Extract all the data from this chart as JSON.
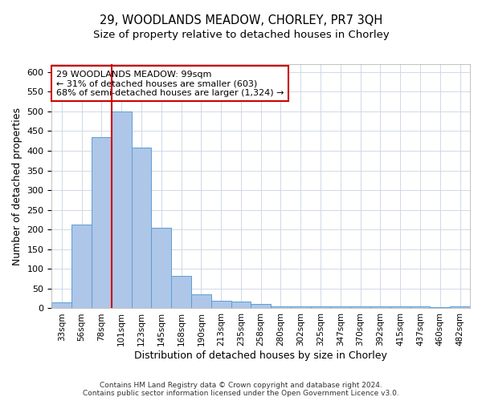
{
  "title_line1": "29, WOODLANDS MEADOW, CHORLEY, PR7 3QH",
  "title_line2": "Size of property relative to detached houses in Chorley",
  "xlabel": "Distribution of detached houses by size in Chorley",
  "ylabel": "Number of detached properties",
  "footer_line1": "Contains HM Land Registry data © Crown copyright and database right 2024.",
  "footer_line2": "Contains public sector information licensed under the Open Government Licence v3.0.",
  "bar_labels": [
    "33sqm",
    "56sqm",
    "78sqm",
    "101sqm",
    "123sqm",
    "145sqm",
    "168sqm",
    "190sqm",
    "213sqm",
    "235sqm",
    "258sqm",
    "280sqm",
    "302sqm",
    "325sqm",
    "347sqm",
    "370sqm",
    "392sqm",
    "415sqm",
    "437sqm",
    "460sqm",
    "482sqm"
  ],
  "bar_values": [
    15,
    212,
    435,
    500,
    408,
    205,
    83,
    36,
    19,
    17,
    11,
    5,
    4,
    4,
    4,
    4,
    4,
    4,
    4,
    2,
    4
  ],
  "bar_color": "#aec6e8",
  "bar_edge_color": "#5a9fd4",
  "vline_color": "#cc0000",
  "annotation_text": "29 WOODLANDS MEADOW: 99sqm\n← 31% of detached houses are smaller (603)\n68% of semi-detached houses are larger (1,324) →",
  "annotation_box_color": "#ffffff",
  "annotation_box_edge_color": "#cc0000",
  "ylim": [
    0,
    620
  ],
  "yticks": [
    0,
    50,
    100,
    150,
    200,
    250,
    300,
    350,
    400,
    450,
    500,
    550,
    600
  ],
  "background_color": "#ffffff",
  "grid_color": "#d0d8e8"
}
